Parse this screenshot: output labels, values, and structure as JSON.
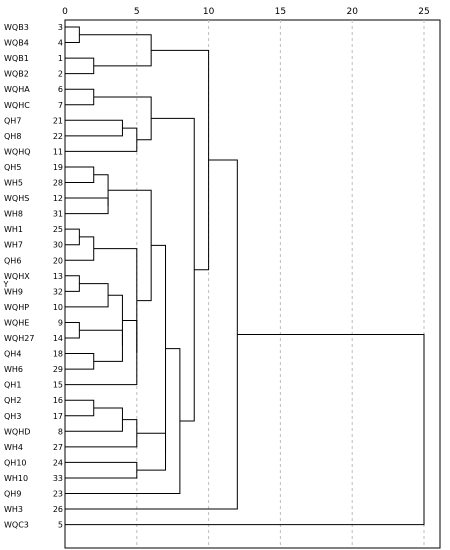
{
  "chart_data": {
    "type": "dendrogram",
    "y_axis_label": "Y",
    "x_ticks": [
      "0",
      "5",
      "10",
      "15",
      "20",
      "25"
    ],
    "xlim": [
      0,
      25
    ],
    "grid": "vertical-dashed",
    "leaves": [
      {
        "name": "WQB3",
        "id": "3"
      },
      {
        "name": "WQB4",
        "id": "4"
      },
      {
        "name": "WQB1",
        "id": "1"
      },
      {
        "name": "WQB2",
        "id": "2"
      },
      {
        "name": "WQHA",
        "id": "6"
      },
      {
        "name": "WQHC",
        "id": "7"
      },
      {
        "name": "QH7",
        "id": "21"
      },
      {
        "name": "QH8",
        "id": "22"
      },
      {
        "name": "WQHQ",
        "id": "11"
      },
      {
        "name": "QH5",
        "id": "19"
      },
      {
        "name": "WH5",
        "id": "28"
      },
      {
        "name": "WQHS",
        "id": "12"
      },
      {
        "name": "WH8",
        "id": "31"
      },
      {
        "name": "WH1",
        "id": "25"
      },
      {
        "name": "WH7",
        "id": "30"
      },
      {
        "name": "QH6",
        "id": "20"
      },
      {
        "name": "WQHX",
        "id": "13"
      },
      {
        "name": "WH9",
        "id": "32"
      },
      {
        "name": "WQHP",
        "id": "10"
      },
      {
        "name": "WQHE",
        "id": "9"
      },
      {
        "name": "WQH27",
        "id": "14"
      },
      {
        "name": "QH4",
        "id": "18"
      },
      {
        "name": "WH6",
        "id": "29"
      },
      {
        "name": "QH1",
        "id": "15"
      },
      {
        "name": "QH2",
        "id": "16"
      },
      {
        "name": "QH3",
        "id": "17"
      },
      {
        "name": "WQHD",
        "id": "8"
      },
      {
        "name": "WH4",
        "id": "27"
      },
      {
        "name": "QH10",
        "id": "24"
      },
      {
        "name": "WH10",
        "id": "33"
      },
      {
        "name": "QH9",
        "id": "23"
      },
      {
        "name": "WH3",
        "id": "26"
      },
      {
        "name": "WQC3",
        "id": "5"
      }
    ],
    "merges": [
      {
        "a": "L0",
        "b": "L1",
        "h": 1.0
      },
      {
        "a": "L2",
        "b": "L3",
        "h": 2.0
      },
      {
        "a": "M0",
        "b": "M1",
        "h": 6.0
      },
      {
        "a": "L4",
        "b": "L5",
        "h": 2.0
      },
      {
        "a": "L6",
        "b": "L7",
        "h": 4.0
      },
      {
        "a": "M4",
        "b": "L8",
        "h": 5.0
      },
      {
        "a": "M3",
        "b": "M5",
        "h": 6.0
      },
      {
        "a": "L9",
        "b": "L10",
        "h": 2.0
      },
      {
        "a": "L11",
        "b": "L12",
        "h": 3.0
      },
      {
        "a": "M7",
        "b": "M8",
        "h": 3.0
      },
      {
        "a": "L13",
        "b": "L14",
        "h": 1.0
      },
      {
        "a": "M10",
        "b": "L15",
        "h": 2.0
      },
      {
        "a": "L16",
        "b": "L17",
        "h": 1.0
      },
      {
        "a": "M12",
        "b": "L18",
        "h": 3.0
      },
      {
        "a": "L19",
        "b": "L20",
        "h": 1.0
      },
      {
        "a": "L21",
        "b": "L22",
        "h": 2.0
      },
      {
        "a": "M14",
        "b": "M15",
        "h": 4.0
      },
      {
        "a": "M13",
        "b": "M16",
        "h": 4.0
      },
      {
        "a": "M17",
        "b": "L23",
        "h": 5.0
      },
      {
        "a": "M11",
        "b": "M18",
        "h": 5.0
      },
      {
        "a": "M9",
        "b": "M19",
        "h": 6.0
      },
      {
        "a": "L24",
        "b": "L25",
        "h": 2.0
      },
      {
        "a": "M21",
        "b": "L26",
        "h": 4.0
      },
      {
        "a": "M22",
        "b": "L27",
        "h": 5.0
      },
      {
        "a": "L28",
        "b": "L29",
        "h": 5.0
      },
      {
        "a": "M23",
        "b": "M24",
        "h": 7.0
      },
      {
        "a": "M20",
        "b": "M25",
        "h": 7.0
      },
      {
        "a": "M26",
        "b": "L30",
        "h": 8.0
      },
      {
        "a": "M6",
        "b": "M27",
        "h": 9.0
      },
      {
        "a": "M2",
        "b": "M28",
        "h": 10.0
      },
      {
        "a": "M29",
        "b": "L31",
        "h": 12.0
      },
      {
        "a": "M30",
        "b": "L32",
        "h": 25.0
      }
    ]
  }
}
